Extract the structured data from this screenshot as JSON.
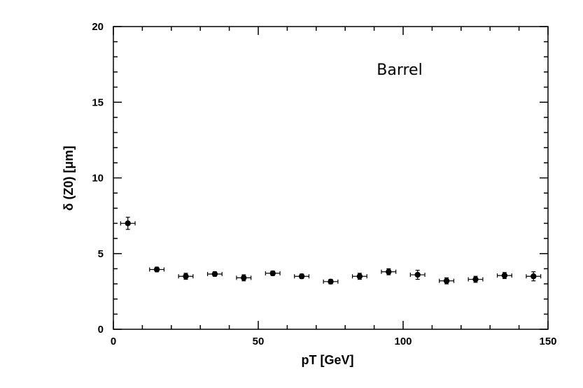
{
  "chart_data": {
    "type": "scatter",
    "title": "",
    "xlabel": "pT [GeV]",
    "ylabel": "δ (Z0) [μm]",
    "xlim": [
      0,
      150
    ],
    "ylim": [
      0,
      20
    ],
    "x_ticks": [
      "0",
      "50",
      "100",
      "150"
    ],
    "y_ticks": [
      "0",
      "5",
      "10",
      "15",
      "20"
    ],
    "annotation": "Barrel",
    "grid": false,
    "x": [
      5,
      15,
      25,
      35,
      45,
      55,
      65,
      75,
      85,
      95,
      105,
      115,
      125,
      135,
      145
    ],
    "y": [
      7.0,
      3.95,
      3.5,
      3.65,
      3.4,
      3.7,
      3.5,
      3.15,
      3.5,
      3.8,
      3.6,
      3.2,
      3.3,
      3.55,
      3.5
    ],
    "x_err": [
      2.5,
      2.5,
      2.5,
      2.5,
      2.5,
      2.5,
      2.5,
      2.5,
      2.5,
      2.5,
      2.5,
      2.5,
      2.5,
      2.5,
      2.5
    ],
    "y_err": [
      0.4,
      0.15,
      0.2,
      0.15,
      0.2,
      0.15,
      0.15,
      0.15,
      0.2,
      0.2,
      0.3,
      0.2,
      0.2,
      0.2,
      0.3
    ],
    "marker_color": "#000000"
  }
}
